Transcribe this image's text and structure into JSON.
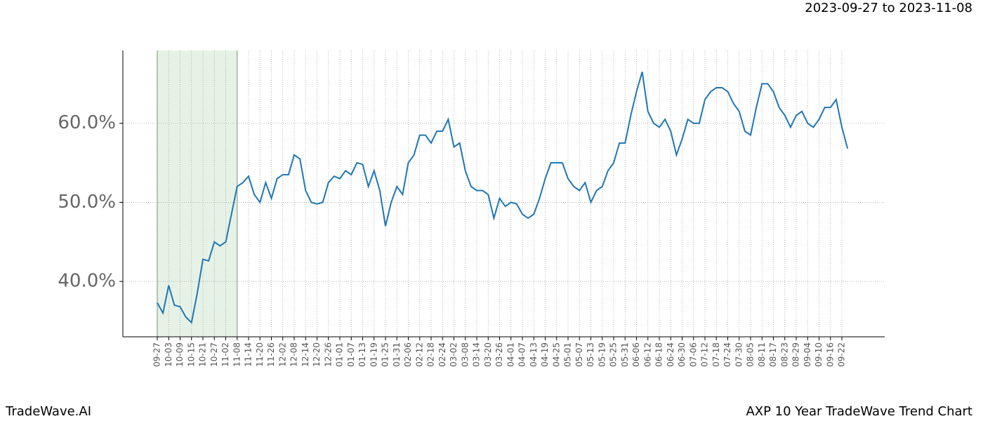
{
  "chart_data": {
    "type": "line",
    "subtitle": "2023-09-27 to 2023-11-08",
    "highlight": [
      "09-27",
      "11-08"
    ],
    "footer_left": "TradeWave.AI",
    "footer_right": "AXP 10 Year TradeWave Trend Chart",
    "categories": [
      "09-27",
      null,
      "10-03",
      null,
      "10-09",
      null,
      "10-15",
      null,
      "10-21",
      null,
      "10-27",
      null,
      "11-02",
      null,
      "11-08",
      null,
      "11-14",
      null,
      "11-20",
      null,
      "11-26",
      null,
      "12-02",
      null,
      "12-08",
      null,
      "12-14",
      null,
      "12-20",
      null,
      "12-26",
      null,
      "01-01",
      null,
      "01-07",
      null,
      "01-13",
      null,
      "01-19",
      null,
      "01-25",
      null,
      "01-31",
      null,
      "02-06",
      null,
      "02-12",
      null,
      "02-18",
      null,
      "02-24",
      null,
      "03-02",
      null,
      "03-08",
      null,
      "03-14",
      null,
      "03-20",
      null,
      "03-26",
      null,
      "04-01",
      null,
      "04-07",
      null,
      "04-13",
      null,
      "04-19",
      null,
      "04-25",
      null,
      "05-01",
      null,
      "05-07",
      null,
      "05-13",
      null,
      "05-19",
      null,
      "05-25",
      null,
      "05-31",
      null,
      "06-06",
      null,
      "06-12",
      null,
      "06-18",
      null,
      "06-24",
      null,
      "06-30",
      null,
      "07-06",
      null,
      "07-12",
      null,
      "07-18",
      null,
      "07-24",
      null,
      "07-30",
      null,
      "08-05",
      null,
      "08-11",
      null,
      "08-17",
      null,
      "08-23",
      null,
      "08-29",
      null,
      "09-04",
      null,
      "09-10",
      null,
      "09-16",
      null,
      "09-22",
      null
    ],
    "values": [
      37.3,
      36.0,
      39.5,
      37.0,
      36.8,
      35.5,
      34.8,
      38.5,
      42.8,
      42.6,
      45.0,
      44.5,
      45.0,
      48.5,
      52.0,
      52.5,
      53.3,
      51.0,
      50.0,
      52.5,
      50.5,
      53.0,
      53.5,
      53.5,
      56.0,
      55.5,
      51.5,
      50.0,
      49.8,
      50.0,
      52.5,
      53.3,
      53.0,
      54.0,
      53.5,
      55.0,
      54.8,
      52.0,
      54.0,
      51.5,
      47.0,
      50.0,
      52.0,
      51.0,
      55.0,
      56.0,
      58.5,
      58.5,
      57.5,
      59.0,
      59.0,
      60.5,
      57.0,
      57.5,
      54.0,
      52.0,
      51.5,
      51.5,
      51.0,
      48.0,
      50.5,
      49.5,
      50.0,
      49.8,
      48.5,
      48.0,
      48.5,
      50.5,
      53.0,
      55.0,
      55.0,
      55.0,
      53.0,
      52.0,
      51.5,
      52.5,
      50.0,
      51.5,
      52.0,
      54.0,
      55.0,
      57.5,
      57.5,
      61.0,
      64.0,
      66.5,
      61.5,
      60.0,
      59.5,
      60.5,
      59.0,
      56.0,
      58.0,
      60.5,
      60.0,
      60.0,
      63.0,
      64.0,
      64.5,
      64.5,
      64.0,
      62.5,
      61.5,
      59.0,
      58.5,
      62.0,
      65.0,
      65.0,
      64.0,
      62.0,
      61.0,
      59.5,
      61.0,
      61.5,
      60.0,
      59.5,
      60.5,
      62.0,
      62.0,
      63.0,
      59.5,
      56.8
    ],
    "color": "#1f77b4",
    "ylim": [
      33,
      69.2
    ],
    "yticks": [
      {
        "value": 40,
        "label": "40.0%"
      },
      {
        "value": 50,
        "label": "50.0%"
      },
      {
        "value": 60,
        "label": "60.0%"
      }
    ],
    "grid": true
  }
}
